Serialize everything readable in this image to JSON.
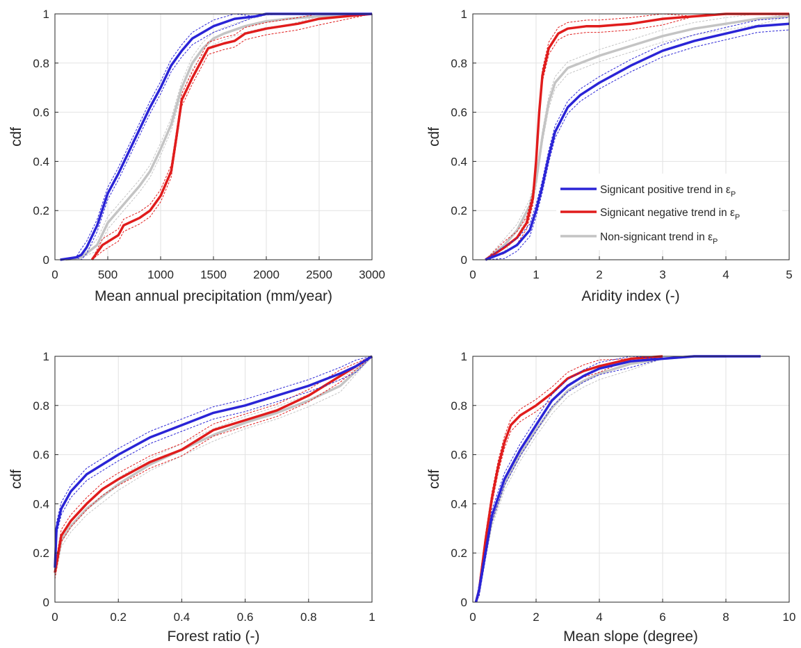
{
  "colors": {
    "positive": "#2a24d6",
    "negative": "#e01c1c",
    "nonsig": "#c4c4c4",
    "grid": "#e2e2e2",
    "axis": "#262626"
  },
  "legend": {
    "placement": "inside-right (aridity panel)",
    "items": [
      {
        "text": "Signicant positive trend in ε",
        "sub": "P",
        "color_key": "positive"
      },
      {
        "text": "Signicant negative trend in ε",
        "sub": "P",
        "color_key": "negative"
      },
      {
        "text": "Non-signicant trend in ε",
        "sub": "P",
        "color_key": "nonsig"
      }
    ]
  },
  "chart_data": [
    {
      "type": "line",
      "xlabel": "Mean annual precipitation (mm/year)",
      "ylabel": "cdf",
      "xlim": [
        0,
        3000
      ],
      "ylim": [
        0,
        1
      ],
      "xticks": [
        "0",
        "500",
        "1000",
        "1500",
        "2000",
        "2500",
        "3000"
      ],
      "yticks": [
        "0",
        "0.2",
        "0.4",
        "0.6",
        "0.8",
        "1"
      ],
      "grid": true,
      "series": [
        {
          "name": "Signicant positive trend in εP",
          "color_key": "positive",
          "x": [
            50,
            200,
            250,
            300,
            400,
            500,
            600,
            700,
            800,
            900,
            1000,
            1100,
            1200,
            1300,
            1500,
            1700,
            1900,
            2000,
            2200,
            2500,
            3000
          ],
          "y": [
            0.0,
            0.01,
            0.02,
            0.05,
            0.14,
            0.27,
            0.35,
            0.44,
            0.53,
            0.62,
            0.7,
            0.79,
            0.85,
            0.9,
            0.95,
            0.98,
            0.99,
            1.0,
            1.0,
            1.0,
            1.0
          ]
        },
        {
          "name": "Signicant negative trend in εP",
          "color_key": "negative",
          "x": [
            350,
            450,
            600,
            650,
            800,
            900,
            1000,
            1100,
            1150,
            1200,
            1300,
            1400,
            1450,
            1600,
            1700,
            1800,
            2000,
            2300,
            2500,
            3000
          ],
          "y": [
            0.0,
            0.06,
            0.1,
            0.14,
            0.17,
            0.2,
            0.26,
            0.36,
            0.5,
            0.65,
            0.74,
            0.82,
            0.86,
            0.88,
            0.89,
            0.92,
            0.94,
            0.96,
            0.98,
            1.0
          ]
        },
        {
          "name": "Non-signicant trend in εP",
          "color_key": "nonsig",
          "x": [
            100,
            250,
            400,
            500,
            700,
            800,
            900,
            1000,
            1100,
            1200,
            1300,
            1400,
            1500,
            1600,
            1800,
            2000,
            2200,
            2500,
            3000
          ],
          "y": [
            0.0,
            0.01,
            0.06,
            0.15,
            0.25,
            0.3,
            0.36,
            0.45,
            0.55,
            0.7,
            0.8,
            0.86,
            0.9,
            0.92,
            0.95,
            0.97,
            0.98,
            0.99,
            1.0
          ]
        }
      ]
    },
    {
      "type": "line",
      "xlabel": "Aridity index (-)",
      "ylabel": "cdf",
      "xlim": [
        0,
        5
      ],
      "ylim": [
        0,
        1
      ],
      "xticks": [
        "0",
        "1",
        "2",
        "3",
        "4",
        "5"
      ],
      "yticks": [
        "0",
        "0.2",
        "0.4",
        "0.6",
        "0.8",
        "1"
      ],
      "grid": true,
      "series": [
        {
          "name": "Signicant positive trend in εP",
          "color_key": "positive",
          "x": [
            0.2,
            0.5,
            0.7,
            0.9,
            1.0,
            1.1,
            1.2,
            1.3,
            1.5,
            1.7,
            2.0,
            2.5,
            3.0,
            3.5,
            4.0,
            4.5,
            5.0
          ],
          "y": [
            0.0,
            0.03,
            0.06,
            0.12,
            0.2,
            0.3,
            0.42,
            0.52,
            0.62,
            0.67,
            0.72,
            0.79,
            0.85,
            0.89,
            0.92,
            0.95,
            0.96
          ]
        },
        {
          "name": "Signicant negative trend in εP",
          "color_key": "negative",
          "x": [
            0.2,
            0.5,
            0.7,
            0.85,
            0.95,
            1.0,
            1.05,
            1.1,
            1.2,
            1.35,
            1.5,
            1.8,
            2.0,
            2.5,
            3.0,
            3.5,
            4.0,
            4.5,
            5.0
          ],
          "y": [
            0.0,
            0.05,
            0.09,
            0.15,
            0.25,
            0.4,
            0.6,
            0.75,
            0.86,
            0.92,
            0.94,
            0.95,
            0.95,
            0.96,
            0.98,
            0.99,
            1.0,
            1.0,
            1.0
          ]
        },
        {
          "name": "Non-signicant trend in εP",
          "color_key": "nonsig",
          "x": [
            0.2,
            0.5,
            0.7,
            0.9,
            1.0,
            1.1,
            1.2,
            1.3,
            1.5,
            1.8,
            2.0,
            2.5,
            3.0,
            3.5,
            4.0,
            4.5,
            5.0
          ],
          "y": [
            0.0,
            0.06,
            0.12,
            0.22,
            0.32,
            0.5,
            0.64,
            0.72,
            0.78,
            0.81,
            0.83,
            0.87,
            0.91,
            0.94,
            0.96,
            0.98,
            0.99
          ]
        }
      ]
    },
    {
      "type": "line",
      "xlabel": "Forest ratio  (-)",
      "ylabel": "cdf",
      "xlim": [
        0,
        1
      ],
      "ylim": [
        0,
        1
      ],
      "xticks": [
        "0",
        "0.2",
        "0.4",
        "0.6",
        "0.8",
        "1"
      ],
      "yticks": [
        "0",
        "0.2",
        "0.4",
        "0.6",
        "0.8",
        "1"
      ],
      "grid": true,
      "series": [
        {
          "name": "Signicant positive trend in εP",
          "color_key": "positive",
          "x": [
            0.0,
            0.005,
            0.02,
            0.05,
            0.1,
            0.2,
            0.3,
            0.4,
            0.5,
            0.6,
            0.7,
            0.8,
            0.9,
            0.95,
            1.0
          ],
          "y": [
            0.14,
            0.3,
            0.38,
            0.45,
            0.52,
            0.6,
            0.67,
            0.72,
            0.77,
            0.8,
            0.84,
            0.88,
            0.93,
            0.96,
            1.0
          ]
        },
        {
          "name": "Signicant negative trend in εP",
          "color_key": "negative",
          "x": [
            0.0,
            0.02,
            0.05,
            0.1,
            0.15,
            0.2,
            0.3,
            0.4,
            0.45,
            0.5,
            0.6,
            0.7,
            0.8,
            0.9,
            1.0
          ],
          "y": [
            0.12,
            0.27,
            0.33,
            0.4,
            0.46,
            0.5,
            0.57,
            0.62,
            0.66,
            0.7,
            0.74,
            0.78,
            0.84,
            0.92,
            1.0
          ]
        },
        {
          "name": "Non-signicant trend in εP",
          "color_key": "nonsig",
          "x": [
            0.0,
            0.02,
            0.05,
            0.1,
            0.2,
            0.3,
            0.4,
            0.5,
            0.6,
            0.7,
            0.8,
            0.9,
            1.0
          ],
          "y": [
            0.12,
            0.25,
            0.31,
            0.38,
            0.48,
            0.56,
            0.62,
            0.68,
            0.73,
            0.77,
            0.82,
            0.88,
            1.0
          ]
        }
      ]
    },
    {
      "type": "line",
      "xlabel": "Mean slope (degree)",
      "ylabel": "cdf",
      "xlim": [
        0,
        10
      ],
      "ylim": [
        0,
        1
      ],
      "xticks": [
        "0",
        "2",
        "4",
        "6",
        "8",
        "10"
      ],
      "yticks": [
        "0",
        "0.2",
        "0.4",
        "0.6",
        "0.8",
        "1"
      ],
      "grid": true,
      "series": [
        {
          "name": "Signicant positive trend in εP",
          "color_key": "positive",
          "x": [
            0.1,
            0.2,
            0.4,
            0.6,
            1.0,
            1.5,
            2.0,
            2.5,
            3.0,
            3.5,
            4.0,
            5.0,
            6.0,
            7.0,
            9.1
          ],
          "y": [
            0.0,
            0.05,
            0.2,
            0.35,
            0.5,
            0.62,
            0.72,
            0.82,
            0.88,
            0.92,
            0.95,
            0.98,
            0.99,
            1.0,
            1.0
          ]
        },
        {
          "name": "Signicant negative trend in εP",
          "color_key": "negative",
          "x": [
            0.1,
            0.2,
            0.4,
            0.6,
            0.8,
            1.0,
            1.2,
            1.5,
            2.0,
            2.5,
            3.0,
            3.5,
            4.0,
            5.0,
            6.0
          ],
          "y": [
            0.0,
            0.05,
            0.25,
            0.42,
            0.55,
            0.65,
            0.72,
            0.76,
            0.8,
            0.85,
            0.91,
            0.94,
            0.96,
            0.99,
            1.0
          ]
        },
        {
          "name": "Non-signicant trend in εP",
          "color_key": "nonsig",
          "x": [
            0.1,
            0.2,
            0.4,
            0.6,
            1.0,
            1.5,
            2.0,
            2.5,
            3.0,
            3.5,
            4.0,
            5.0,
            6.0,
            7.0,
            8.0
          ],
          "y": [
            0.0,
            0.05,
            0.2,
            0.33,
            0.48,
            0.6,
            0.7,
            0.79,
            0.86,
            0.9,
            0.93,
            0.97,
            0.99,
            1.0,
            1.0
          ]
        }
      ]
    }
  ]
}
